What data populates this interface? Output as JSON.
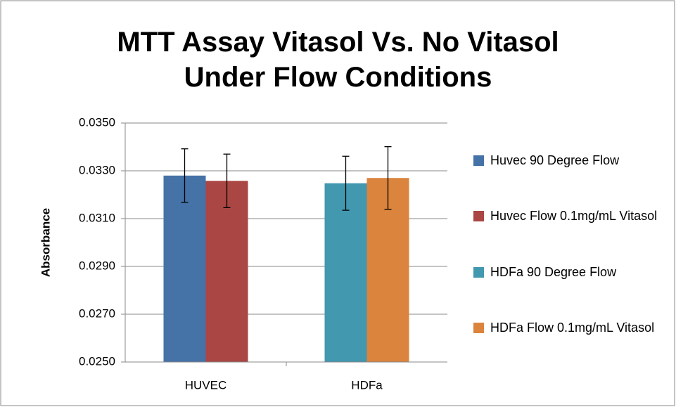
{
  "chart_data": {
    "type": "bar",
    "title": [
      "MTT Assay Vitasol Vs. No Vitasol",
      "Under Flow Conditions"
    ],
    "y_label": "Absorbance",
    "categories": [
      "HUVEC",
      "HDFa"
    ],
    "series": [
      {
        "name": "Huvec 90 Degree Flow",
        "color": "#4572a7",
        "values": [
          0.0328,
          null
        ],
        "errors": [
          0.00112,
          null
        ]
      },
      {
        "name": "Huvec Flow 0.1mg/mL Vitasol",
        "color": "#aa4643",
        "values": [
          0.03258,
          null
        ],
        "errors": [
          0.00112,
          null
        ]
      },
      {
        "name": "HDFa 90 Degree Flow",
        "color": "#4198af",
        "values": [
          null,
          0.03248
        ],
        "errors": [
          null,
          0.00113
        ]
      },
      {
        "name": "HDFa Flow 0.1mg/mL Vitasol",
        "color": "#db843d",
        "values": [
          null,
          0.0327
        ],
        "errors": [
          null,
          0.00131
        ]
      }
    ],
    "ylim": [
      0.025,
      0.035
    ],
    "yticks": [
      {
        "value": 0.025,
        "label": "0.0250"
      },
      {
        "value": 0.027,
        "label": "0.0270"
      },
      {
        "value": 0.029,
        "label": "0.0290"
      },
      {
        "value": 0.031,
        "label": "0.0310"
      },
      {
        "value": 0.033,
        "label": "0.0330"
      },
      {
        "value": 0.035,
        "label": "0.0350"
      }
    ],
    "grid": true,
    "legend": "right"
  }
}
